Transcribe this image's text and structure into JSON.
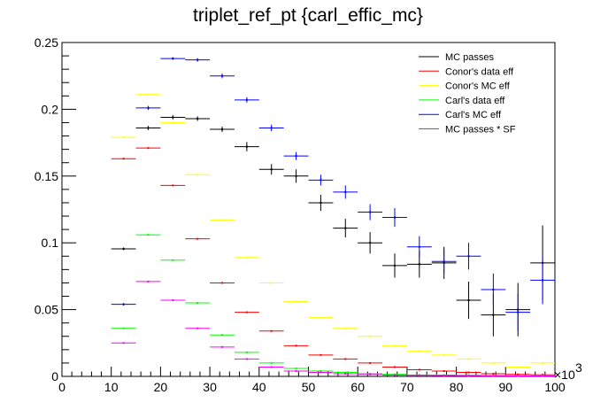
{
  "chart_data": {
    "type": "scatter",
    "title": "triplet_ref_pt  {carl_effic_mc}",
    "xlabel": "",
    "ylabel": "",
    "xlim": [
      0,
      100
    ],
    "ylim": [
      0,
      0.25
    ],
    "x_multiplier_label": "×10",
    "x_multiplier_exp": "3",
    "x_ticks": [
      "0",
      "10",
      "20",
      "30",
      "40",
      "50",
      "60",
      "70",
      "80",
      "90",
      "100"
    ],
    "y_ticks": [
      "0",
      "0.05",
      "0.1",
      "0.15",
      "0.2",
      "0.25"
    ],
    "bin_width": 5,
    "legend_position": "top-right",
    "grid": false,
    "series": [
      {
        "name": "MC passes",
        "color": "#000000",
        "x": [
          12.5,
          17.5,
          22.5,
          27.5,
          32.5,
          37.5,
          42.5,
          47.5,
          52.5,
          57.5,
          62.5,
          67.5,
          72.5,
          77.5,
          82.5,
          87.5,
          92.5,
          97.5
        ],
        "y": [
          0.0955,
          0.186,
          0.194,
          0.193,
          0.185,
          0.172,
          0.155,
          0.15,
          0.13,
          0.111,
          0.1,
          0.083,
          0.084,
          0.085,
          0.057,
          0.046,
          0.05,
          0.085
        ],
        "err": [
          0.001,
          0.0015,
          0.0015,
          0.0017,
          0.002,
          0.0035,
          0.004,
          0.005,
          0.006,
          0.007,
          0.008,
          0.009,
          0.01,
          0.012,
          0.014,
          0.016,
          0.02,
          0.028
        ]
      },
      {
        "name": "Conor's data eff",
        "color": "#ff0000",
        "x": [
          12.5,
          17.5,
          22.5,
          27.5,
          32.5,
          37.5,
          42.5,
          47.5,
          52.5,
          57.5,
          62.5,
          67.5,
          72.5,
          77.5,
          82.5,
          87.5,
          92.5,
          97.5
        ],
        "y": [
          0.163,
          0.171,
          0.143,
          0.103,
          0.07,
          0.048,
          0.034,
          0.023,
          0.016,
          0.013,
          0.01,
          0.007,
          0.005,
          0.004,
          0.003,
          0.002,
          0.0015,
          0.0012
        ],
        "err": [
          0.0005,
          0.0005,
          0.0005,
          0.0005,
          0.0005,
          0.0005,
          0.0005,
          0.0005,
          0.0005,
          0.0005,
          0.0005,
          0.0005,
          0.0005,
          0.0005,
          0.0005,
          0.0005,
          0.0005,
          0.0005
        ]
      },
      {
        "name": "Conor's MC eff",
        "color": "#ffff00",
        "x": [
          12.5,
          17.5,
          22.5,
          27.5,
          32.5,
          37.5,
          42.5,
          47.5,
          52.5,
          57.5,
          62.5,
          67.5,
          72.5,
          77.5,
          82.5,
          87.5,
          92.5,
          97.5
        ],
        "y": [
          0.179,
          0.211,
          0.19,
          0.151,
          0.117,
          0.089,
          0.07,
          0.056,
          0.044,
          0.036,
          0.03,
          0.023,
          0.019,
          0.016,
          0.013,
          0.01,
          0.007,
          0.01
        ],
        "err": [
          0.0005,
          0.0005,
          0.0005,
          0.0005,
          0.0005,
          0.0005,
          0.0005,
          0.0005,
          0.0005,
          0.0005,
          0.0005,
          0.0005,
          0.0005,
          0.0005,
          0.0005,
          0.0005,
          0.0005,
          0.0005
        ]
      },
      {
        "name": "Carl's data eff",
        "color": "#00ff00",
        "x": [
          12.5,
          17.5,
          22.5,
          27.5,
          32.5,
          37.5,
          42.5,
          47.5,
          52.5,
          57.5,
          62.5,
          67.5,
          72.5,
          77.5,
          82.5,
          87.5,
          92.5,
          97.5
        ],
        "y": [
          0.036,
          0.106,
          0.087,
          0.055,
          0.031,
          0.018,
          0.01,
          0.006,
          0.004,
          0.003,
          0.002,
          0.0015,
          0.001,
          0.001,
          0.0008,
          0.0006,
          0.0005,
          0.0004
        ],
        "err": [
          0.0005,
          0.0005,
          0.0005,
          0.0005,
          0.0005,
          0.0005,
          0.0005,
          0.0005,
          0.0005,
          0.0005,
          0.0005,
          0.0005,
          0.0005,
          0.0005,
          0.0005,
          0.0005,
          0.0005,
          0.0005
        ]
      },
      {
        "name": "Carl's MC eff",
        "color": "#0000ff",
        "x": [
          12.5,
          17.5,
          22.5,
          27.5,
          32.5,
          37.5,
          42.5,
          47.5,
          52.5,
          57.5,
          62.5,
          67.5,
          72.5,
          77.5,
          82.5,
          87.5,
          92.5,
          97.5
        ],
        "y": [
          0.054,
          0.201,
          0.238,
          0.237,
          0.225,
          0.207,
          0.186,
          0.165,
          0.147,
          0.138,
          0.123,
          0.119,
          0.097,
          0.086,
          0.09,
          0.065,
          0.048,
          0.072
        ],
        "err": [
          0.001,
          0.0015,
          0.001,
          0.0013,
          0.0017,
          0.002,
          0.0025,
          0.003,
          0.004,
          0.005,
          0.006,
          0.007,
          0.008,
          0.009,
          0.01,
          0.012,
          0.014,
          0.018
        ]
      },
      {
        "name": "MC passes * SF",
        "color": "#ff00ff",
        "x": [
          12.5,
          17.5,
          22.5,
          27.5,
          32.5,
          37.5,
          42.5,
          47.5,
          52.5,
          57.5,
          62.5,
          67.5,
          72.5,
          77.5,
          82.5,
          87.5,
          92.5,
          97.5
        ],
        "y": [
          0.025,
          0.071,
          0.057,
          0.036,
          0.022,
          0.013,
          0.007,
          0.004,
          0.003,
          0.002,
          0.0015,
          0.001,
          0.0008,
          0.0006,
          0.0005,
          0.0004,
          0.0003,
          0.0003
        ],
        "err": [
          0.0005,
          0.0005,
          0.0005,
          0.0005,
          0.0005,
          0.0005,
          0.0005,
          0.0005,
          0.0005,
          0.0005,
          0.0005,
          0.0005,
          0.0005,
          0.0005,
          0.0005,
          0.0005,
          0.0005,
          0.0005
        ]
      }
    ]
  }
}
